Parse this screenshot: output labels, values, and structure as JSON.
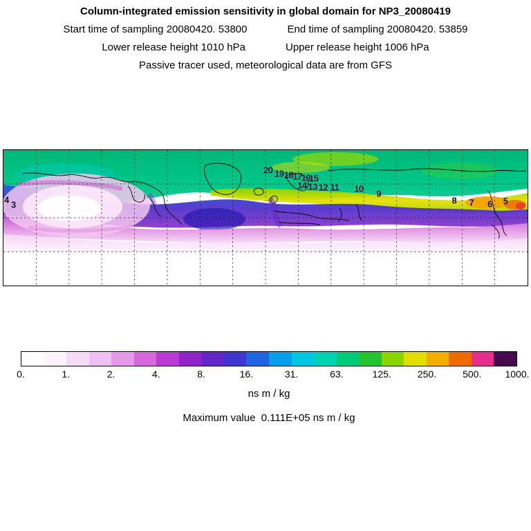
{
  "header": {
    "title": "Column-integrated emission sensitivity in global domain for NP3_20080419",
    "start_time": "Start time of sampling 20080420. 53800",
    "end_time": "End time of sampling 20080420. 53859",
    "lower_release": "Lower release height 1010 hPa",
    "upper_release": "Upper release height 1006 hPa",
    "tracer_line": "Passive tracer used, meteorological data are from GFS"
  },
  "chart_data": {
    "type": "heatmap",
    "title": "Column-integrated emission sensitivity in global domain for NP3_20080419",
    "field": "column-integrated emission sensitivity",
    "colorbar": {
      "units": "ns m / kg",
      "levels": [
        0,
        1,
        2,
        4,
        8,
        16,
        31,
        63,
        125,
        250,
        500,
        1000
      ],
      "tick_labels": [
        "0.",
        "1.",
        "2.",
        "4.",
        "8.",
        "16.",
        "31.",
        "63.",
        "125.",
        "250.",
        "500.",
        "1000."
      ],
      "colors": [
        "#ffffff",
        "#fdf3fd",
        "#f6dcf8",
        "#efc0f2",
        "#e49ae8",
        "#d667dc",
        "#bb3ad4",
        "#9124c9",
        "#6426c9",
        "#3f36d2",
        "#2064e2",
        "#089eea",
        "#00c6e0",
        "#00d2b4",
        "#00ca7a",
        "#25c32e",
        "#8cd400",
        "#e2de00",
        "#f4ae00",
        "#ef6a00",
        "#e72d8e",
        "#46094e"
      ]
    },
    "max_value_text": "Maximum value  0.111E+05 ns m / kg",
    "trajectory_markers": [
      {
        "label": "20",
        "x": 50.5,
        "y": 14.8
      },
      {
        "label": "19",
        "x": 52.6,
        "y": 17.4
      },
      {
        "label": "18",
        "x": 54.4,
        "y": 18.4
      },
      {
        "label": "17",
        "x": 56.1,
        "y": 19.4
      },
      {
        "label": "16",
        "x": 57.7,
        "y": 20.4
      },
      {
        "label": "15",
        "x": 59.2,
        "y": 21.0
      },
      {
        "label": "14",
        "x": 57.0,
        "y": 26.0
      },
      {
        "label": "13",
        "x": 59.0,
        "y": 26.8
      },
      {
        "label": "12",
        "x": 61.0,
        "y": 27.3
      },
      {
        "label": "11",
        "x": 63.2,
        "y": 27.8
      },
      {
        "label": "10",
        "x": 67.8,
        "y": 28.6
      },
      {
        "label": "9",
        "x": 71.6,
        "y": 32.0
      },
      {
        "label": "8",
        "x": 86.0,
        "y": 37.0
      },
      {
        "label": "7",
        "x": 89.3,
        "y": 38.8
      },
      {
        "label": "6",
        "x": 92.8,
        "y": 40.0
      },
      {
        "label": "5",
        "x": 95.8,
        "y": 37.5
      },
      {
        "label": "4",
        "x": 0.6,
        "y": 36.5
      },
      {
        "label": "3",
        "x": 1.9,
        "y": 40.5
      }
    ]
  }
}
